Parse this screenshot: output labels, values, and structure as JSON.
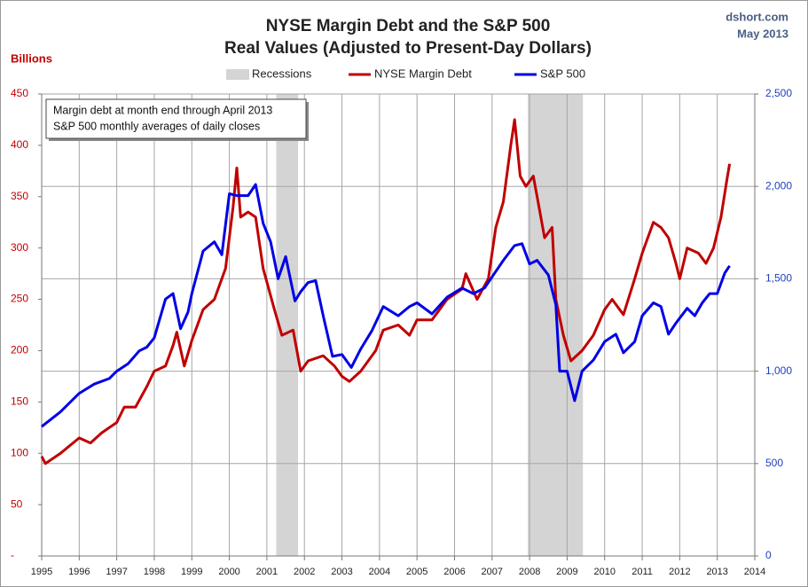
{
  "chart_data": {
    "type": "line",
    "title": "NYSE Margin Debt and the S&P 500",
    "subtitle": "Real Values (Adjusted to Present-Day Dollars)",
    "source": "dshort.com",
    "date": "May 2013",
    "y_label": "Billions",
    "annotation": [
      "Margin debt at month end through April 2013",
      "S&P 500 monthly averages of daily closes"
    ],
    "recessions": {
      "name": "Recessions",
      "color": "#d4d4d4",
      "spans": [
        [
          2001.25,
          2001.83
        ],
        [
          2007.95,
          2009.42
        ]
      ]
    },
    "xlim": [
      1995,
      2014
    ],
    "xticks": [
      1995,
      1996,
      1997,
      1998,
      1999,
      2000,
      2001,
      2002,
      2003,
      2004,
      2005,
      2006,
      2007,
      2008,
      2009,
      2010,
      2011,
      2012,
      2013,
      2014
    ],
    "ylim": [
      0,
      450
    ],
    "yticks": [
      {
        "value": 0,
        "label": "-"
      },
      50,
      100,
      150,
      200,
      250,
      300,
      350,
      400,
      450
    ],
    "y2lim": [
      0,
      2500
    ],
    "y2ticks": [
      0,
      500,
      {
        "value": 1000,
        "label": "1,000"
      },
      {
        "value": 1500,
        "label": "1,500"
      },
      {
        "value": 2000,
        "label": "2,000"
      },
      {
        "value": 2500,
        "label": "2,500"
      }
    ],
    "grid": true,
    "series": [
      {
        "name": "NYSE Margin Debt",
        "color": "#c00000",
        "axis": "y",
        "x": [
          1995.0,
          1995.1,
          1995.5,
          1996.0,
          1996.3,
          1996.6,
          1997.0,
          1997.2,
          1997.5,
          1997.8,
          1998.0,
          1998.3,
          1998.5,
          1998.6,
          1998.8,
          1999.0,
          1999.3,
          1999.6,
          1999.9,
          2000.1,
          2000.2,
          2000.3,
          2000.5,
          2000.7,
          2000.9,
          2001.2,
          2001.4,
          2001.7,
          2001.9,
          2002.1,
          2002.5,
          2002.8,
          2003.0,
          2003.2,
          2003.5,
          2003.9,
          2004.1,
          2004.5,
          2004.8,
          2005.0,
          2005.4,
          2005.8,
          2006.2,
          2006.3,
          2006.6,
          2006.9,
          2007.1,
          2007.3,
          2007.5,
          2007.6,
          2007.75,
          2007.9,
          2008.1,
          2008.2,
          2008.4,
          2008.6,
          2008.7,
          2008.9,
          2009.1,
          2009.4,
          2009.7,
          2010.0,
          2010.2,
          2010.5,
          2010.8,
          2011.0,
          2011.3,
          2011.5,
          2011.7,
          2011.9,
          2012.0,
          2012.2,
          2012.5,
          2012.7,
          2012.9,
          2013.1,
          2013.25,
          2013.33
        ],
        "values": [
          97,
          90,
          100,
          115,
          110,
          120,
          130,
          145,
          145,
          165,
          180,
          185,
          205,
          218,
          185,
          210,
          240,
          250,
          280,
          340,
          378,
          330,
          335,
          330,
          280,
          240,
          215,
          220,
          180,
          190,
          195,
          185,
          175,
          170,
          180,
          200,
          220,
          225,
          215,
          230,
          230,
          250,
          260,
          275,
          250,
          270,
          320,
          345,
          400,
          425,
          370,
          360,
          370,
          350,
          310,
          320,
          250,
          215,
          190,
          200,
          215,
          240,
          250,
          235,
          270,
          295,
          325,
          320,
          310,
          285,
          270,
          300,
          295,
          285,
          300,
          330,
          365,
          382
        ]
      },
      {
        "name": "S&P 500",
        "color": "#0000e6",
        "axis": "y2",
        "x": [
          1995.0,
          1995.5,
          1996.0,
          1996.4,
          1996.8,
          1997.0,
          1997.3,
          1997.6,
          1997.8,
          1998.0,
          1998.3,
          1998.5,
          1998.7,
          1998.9,
          1999.0,
          1999.3,
          1999.6,
          1999.8,
          2000.0,
          2000.2,
          2000.5,
          2000.7,
          2000.9,
          2001.1,
          2001.3,
          2001.5,
          2001.75,
          2001.9,
          2002.1,
          2002.3,
          2002.5,
          2002.75,
          2003.0,
          2003.25,
          2003.5,
          2003.8,
          2004.1,
          2004.5,
          2004.8,
          2005.0,
          2005.4,
          2005.8,
          2006.2,
          2006.5,
          2006.8,
          2007.0,
          2007.3,
          2007.6,
          2007.8,
          2008.0,
          2008.2,
          2008.5,
          2008.7,
          2008.8,
          2009.0,
          2009.2,
          2009.4,
          2009.7,
          2010.0,
          2010.3,
          2010.5,
          2010.8,
          2011.0,
          2011.3,
          2011.5,
          2011.7,
          2011.9,
          2012.2,
          2012.4,
          2012.6,
          2012.8,
          2013.0,
          2013.2,
          2013.33
        ],
        "values": [
          700,
          780,
          880,
          930,
          960,
          1000,
          1040,
          1110,
          1130,
          1180,
          1390,
          1420,
          1230,
          1320,
          1420,
          1650,
          1700,
          1630,
          1960,
          1950,
          1950,
          2010,
          1800,
          1700,
          1500,
          1620,
          1380,
          1430,
          1480,
          1490,
          1300,
          1080,
          1090,
          1020,
          1120,
          1220,
          1350,
          1300,
          1350,
          1370,
          1310,
          1400,
          1450,
          1420,
          1450,
          1510,
          1600,
          1680,
          1690,
          1580,
          1600,
          1520,
          1360,
          1000,
          1000,
          840,
          1000,
          1060,
          1160,
          1200,
          1100,
          1160,
          1300,
          1370,
          1350,
          1200,
          1260,
          1340,
          1300,
          1370,
          1420,
          1420,
          1530,
          1570
        ]
      }
    ]
  }
}
